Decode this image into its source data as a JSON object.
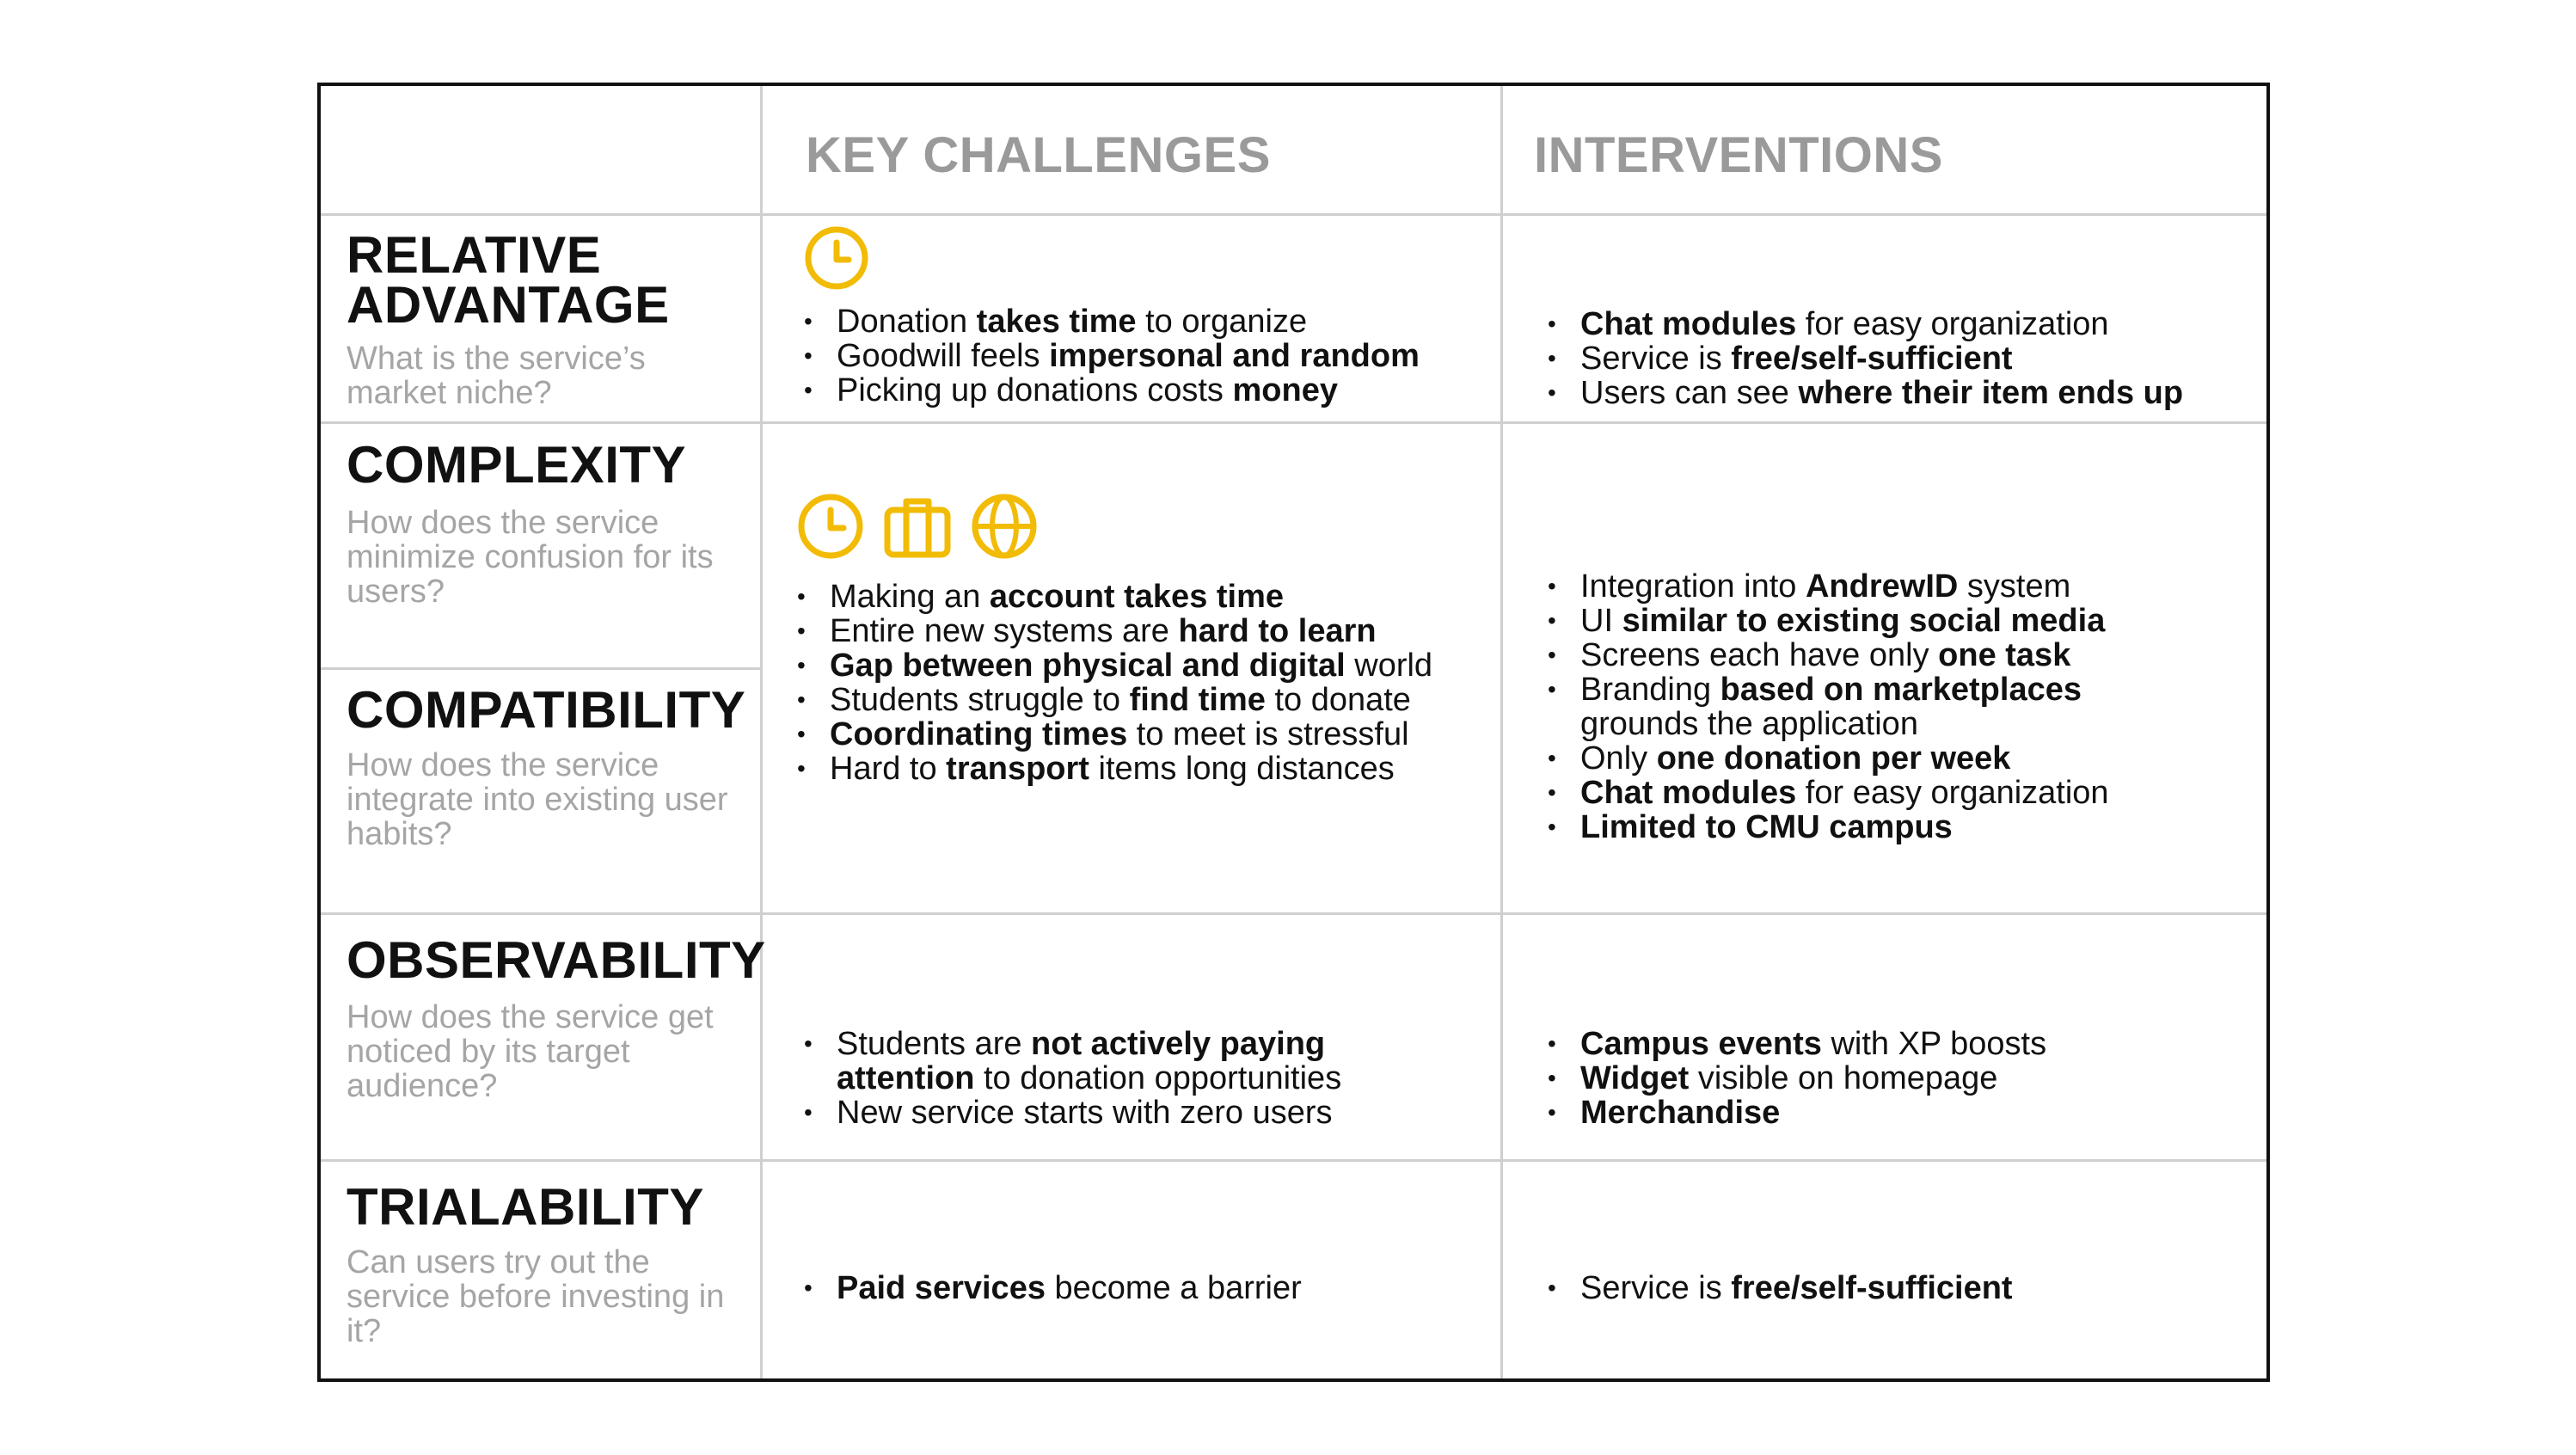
{
  "colors": {
    "accent": "#F2BB05",
    "border": "#111111",
    "divider": "#CFCFCF",
    "muted": "#A5A5A5"
  },
  "header": {
    "key_challenges": "KEY CHALLENGES",
    "interventions": "INTERVENTIONS"
  },
  "rows": [
    {
      "label": "RELATIVE ADVANTAGE",
      "label_lines": [
        "RELATIVE",
        "ADVANTAGE"
      ],
      "question": "What is the service’s market niche?",
      "icons": [
        "clock-icon"
      ],
      "challenges": [
        [
          {
            "t": "Donation "
          },
          {
            "t": "takes time",
            "b": true
          },
          {
            "t": " to organize"
          }
        ],
        [
          {
            "t": "Goodwill feels "
          },
          {
            "t": "impersonal and random",
            "b": true
          }
        ],
        [
          {
            "t": "Picking up donations costs "
          },
          {
            "t": "money",
            "b": true
          }
        ]
      ],
      "interventions": [
        [
          {
            "t": "Chat modules",
            "b": true
          },
          {
            "t": " for easy organization"
          }
        ],
        [
          {
            "t": "Service is "
          },
          {
            "t": "free/self-sufficient",
            "b": true
          }
        ],
        [
          {
            "t": "Users can see "
          },
          {
            "t": "where their item ends up",
            "b": true
          }
        ]
      ]
    },
    {
      "label": "COMPLEXITY",
      "question": "How does the service minimize confusion for its users?"
    },
    {
      "label": "COMPATIBILITY",
      "question": "How does the service integrate into existing user habits?",
      "icons": [
        "clock-icon",
        "briefcase-icon",
        "globe-icon"
      ],
      "challenges": [
        [
          {
            "t": "Making an "
          },
          {
            "t": "account takes time",
            "b": true
          }
        ],
        [
          {
            "t": "Entire new systems are "
          },
          {
            "t": "hard to learn",
            "b": true
          }
        ],
        [
          {
            "t": "Gap between physical and digital",
            "b": true
          },
          {
            "t": " world"
          }
        ],
        [
          {
            "t": "Students struggle to "
          },
          {
            "t": "find time",
            "b": true
          },
          {
            "t": " to donate"
          }
        ],
        [
          {
            "t": "Coordinating times",
            "b": true
          },
          {
            "t": " to meet is stressful"
          }
        ],
        [
          {
            "t": "Hard to "
          },
          {
            "t": "transport",
            "b": true
          },
          {
            "t": " items long distances"
          }
        ]
      ],
      "interventions": [
        [
          {
            "t": "Integration into "
          },
          {
            "t": "AndrewID",
            "b": true
          },
          {
            "t": " system"
          }
        ],
        [
          {
            "t": "UI "
          },
          {
            "t": "similar to existing social media",
            "b": true
          }
        ],
        [
          {
            "t": "Screens each have only "
          },
          {
            "t": "one task",
            "b": true
          }
        ],
        [
          {
            "t": "Branding "
          },
          {
            "t": "based on marketplaces",
            "b": true
          }
        ],
        [
          {
            "t": "grounds the application",
            "cont": true
          }
        ],
        [
          {
            "t": "Only "
          },
          {
            "t": "one donation per week",
            "b": true
          }
        ],
        [
          {
            "t": "Chat modules",
            "b": true
          },
          {
            "t": " for easy organization"
          }
        ],
        [
          {
            "t": "Limited to CMU campus",
            "b": true
          }
        ]
      ]
    },
    {
      "label": "OBSERVABILITY",
      "question": "How does the service get noticed by its target audience?",
      "challenges": [
        [
          {
            "t": "Students are "
          },
          {
            "t": "not actively paying",
            "b": true
          }
        ],
        [
          {
            "t": "attention",
            "b": true,
            "cont": true
          },
          {
            "t": " to donation opportunities"
          }
        ],
        [
          {
            "t": "New service starts with zero users"
          }
        ]
      ],
      "interventions": [
        [
          {
            "t": "Campus events",
            "b": true
          },
          {
            "t": " with XP boosts"
          }
        ],
        [
          {
            "t": "Widget",
            "b": true
          },
          {
            "t": " visible on homepage"
          }
        ],
        [
          {
            "t": "Merchandise",
            "b": true
          }
        ]
      ]
    },
    {
      "label": "TRIALABILITY",
      "question": "Can users try out the service before investing in it?",
      "challenges": [
        [
          {
            "t": "Paid services",
            "b": true
          },
          {
            "t": " become a barrier"
          }
        ]
      ],
      "interventions": [
        [
          {
            "t": "Service is "
          },
          {
            "t": "free/self-sufficient",
            "b": true
          }
        ]
      ]
    }
  ]
}
